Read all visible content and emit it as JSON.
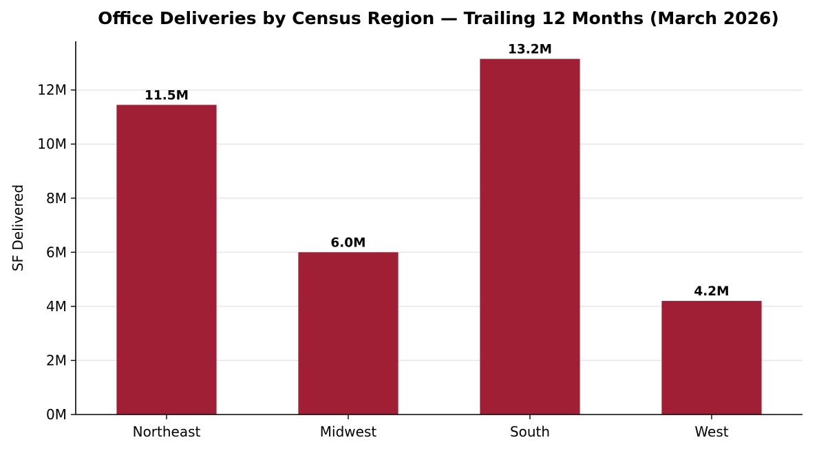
{
  "chart_data": {
    "type": "bar",
    "title": "Office Deliveries by Census Region — Trailing 12 Months (March 2026)",
    "xlabel": "",
    "ylabel": "SF Delivered",
    "categories": [
      "Northeast",
      "Midwest",
      "South",
      "West"
    ],
    "values": [
      11.45,
      6.0,
      13.15,
      4.2
    ],
    "value_labels": [
      "11.5M",
      "6.0M",
      "13.2M",
      "4.2M"
    ],
    "unit": "M",
    "ylim": [
      0,
      13.8
    ],
    "yticks": [
      0,
      2,
      4,
      6,
      8,
      10,
      12
    ],
    "ytick_labels": [
      "0M",
      "2M",
      "4M",
      "6M",
      "8M",
      "10M",
      "12M"
    ],
    "grid": "y",
    "bar_color": "#a11f34",
    "grid_color": "#e6e6e6",
    "axis_color": "#000000"
  }
}
